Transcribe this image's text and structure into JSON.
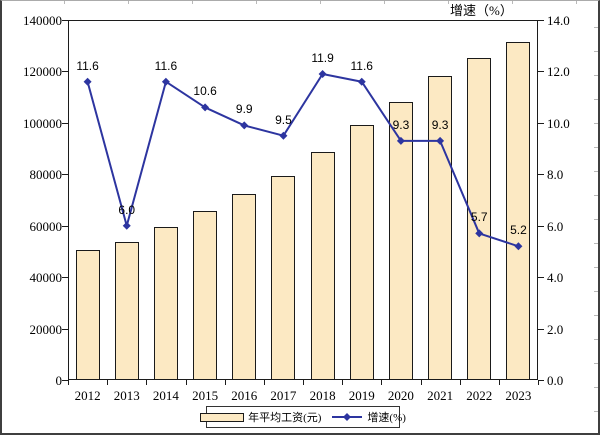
{
  "right_axis_title": "增速（%）",
  "legend": {
    "bar_label": "年平均工资(元)",
    "line_label": "增速(%)"
  },
  "chart_data": {
    "type": "bar+line combo",
    "title": "",
    "categories": [
      "2012",
      "2013",
      "2014",
      "2015",
      "2016",
      "2017",
      "2018",
      "2019",
      "2020",
      "2021",
      "2022",
      "2023"
    ],
    "series": [
      {
        "name": "年平均工资(元)",
        "type": "bar",
        "axis": "left",
        "values": [
          50500,
          53500,
          59600,
          65900,
          72400,
          79300,
          88700,
          99000,
          108200,
          118300,
          125100,
          131600
        ]
      },
      {
        "name": "增速(%)",
        "type": "line",
        "axis": "right",
        "values": [
          11.6,
          6.0,
          11.6,
          10.6,
          9.9,
          9.5,
          11.9,
          11.6,
          9.3,
          9.3,
          5.7,
          5.2
        ]
      }
    ],
    "line_point_labels": [
      "11.6",
      "6.0",
      "11.6",
      "10.6",
      "9.9",
      "9.5",
      "11.9",
      "11.6",
      "9.3",
      "9.3",
      "5.7",
      "5.2"
    ],
    "left_axis": {
      "min": 0,
      "max": 140000,
      "step": 20000,
      "tick_labels": [
        "0",
        "20000",
        "40000",
        "60000",
        "80000",
        "100000",
        "120000",
        "140000"
      ]
    },
    "right_axis": {
      "min": 0,
      "max": 14,
      "step": 2,
      "title": "增速（%）",
      "tick_labels": [
        "0.0",
        "2.0",
        "4.0",
        "6.0",
        "8.0",
        "10.0",
        "12.0",
        "14.0"
      ]
    },
    "grid": false,
    "legend_position": "bottom",
    "colors": {
      "bar_fill": "#FCE9C3",
      "bar_border": "#1a1a1a",
      "line": "#2D35A0",
      "marker": "#2D35A0",
      "text": "#000000"
    }
  }
}
